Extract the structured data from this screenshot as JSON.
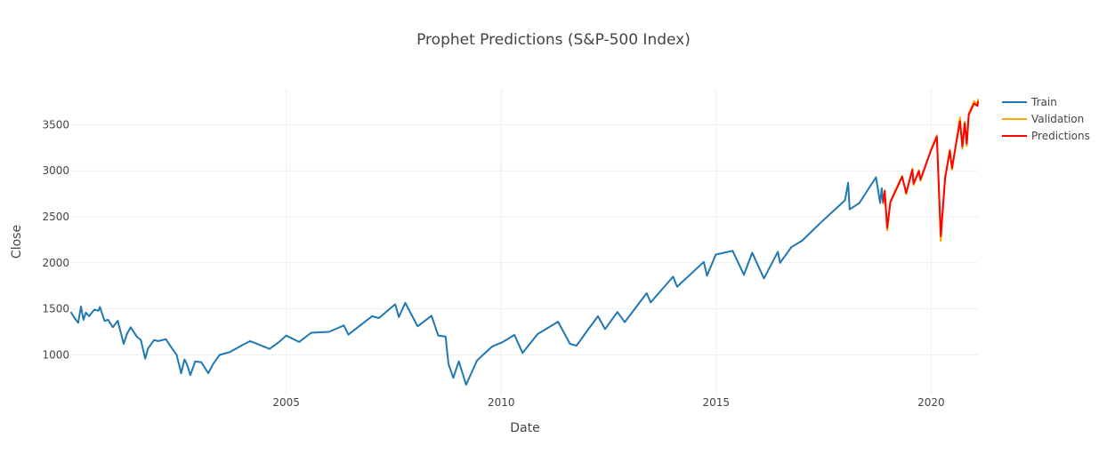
{
  "chart_data": {
    "type": "line",
    "title": "Prophet Predictions (S&P-500 Index)",
    "xlabel": "Date",
    "ylabel": "Close",
    "x_ticks": [
      "2005",
      "2010",
      "2015",
      "2020"
    ],
    "y_ticks": [
      "1000",
      "1500",
      "2000",
      "2500",
      "3000",
      "3500"
    ],
    "xlim": [
      "2000-01-01",
      "2021-02-02"
    ],
    "ylim": [
      560,
      3890
    ],
    "grid": true,
    "legend_position": "top-right",
    "series": [
      {
        "name": "Train",
        "color": "#1f77b4",
        "points": [
          [
            "2000-01-01",
            1460
          ],
          [
            "2000-01-20",
            1420
          ],
          [
            "2000-02-10",
            1380
          ],
          [
            "2000-03-01",
            1350
          ],
          [
            "2000-03-24",
            1525
          ],
          [
            "2000-04-14",
            1380
          ],
          [
            "2000-05-05",
            1460
          ],
          [
            "2000-06-01",
            1420
          ],
          [
            "2000-07-15",
            1490
          ],
          [
            "2000-08-20",
            1480
          ],
          [
            "2000-09-01",
            1520
          ],
          [
            "2000-10-10",
            1370
          ],
          [
            "2000-11-10",
            1380
          ],
          [
            "2000-12-20",
            1300
          ],
          [
            "2001-01-30",
            1370
          ],
          [
            "2001-03-22",
            1120
          ],
          [
            "2001-04-20",
            1230
          ],
          [
            "2001-05-20",
            1300
          ],
          [
            "2001-07-10",
            1200
          ],
          [
            "2001-08-15",
            1160
          ],
          [
            "2001-09-21",
            960
          ],
          [
            "2001-10-15",
            1070
          ],
          [
            "2001-12-05",
            1160
          ],
          [
            "2002-01-10",
            1150
          ],
          [
            "2002-03-15",
            1170
          ],
          [
            "2002-05-01",
            1080
          ],
          [
            "2002-06-15",
            1000
          ],
          [
            "2002-07-23",
            800
          ],
          [
            "2002-08-20",
            950
          ],
          [
            "2002-09-10",
            900
          ],
          [
            "2002-10-09",
            780
          ],
          [
            "2002-11-20",
            930
          ],
          [
            "2003-01-10",
            920
          ],
          [
            "2003-03-11",
            800
          ],
          [
            "2003-04-20",
            900
          ],
          [
            "2003-06-15",
            1000
          ],
          [
            "2003-09-10",
            1030
          ],
          [
            "2003-12-31",
            1110
          ],
          [
            "2004-03-01",
            1150
          ],
          [
            "2004-08-12",
            1065
          ],
          [
            "2004-11-01",
            1140
          ],
          [
            "2004-12-31",
            1210
          ],
          [
            "2005-04-20",
            1140
          ],
          [
            "2005-08-01",
            1240
          ],
          [
            "2005-12-31",
            1250
          ],
          [
            "2006-05-05",
            1320
          ],
          [
            "2006-06-13",
            1220
          ],
          [
            "2006-12-31",
            1420
          ],
          [
            "2007-02-27",
            1400
          ],
          [
            "2007-07-15",
            1550
          ],
          [
            "2007-08-15",
            1410
          ],
          [
            "2007-10-09",
            1565
          ],
          [
            "2008-01-22",
            1310
          ],
          [
            "2008-05-19",
            1425
          ],
          [
            "2008-07-15",
            1210
          ],
          [
            "2008-09-15",
            1200
          ],
          [
            "2008-10-10",
            900
          ],
          [
            "2008-11-20",
            750
          ],
          [
            "2009-01-06",
            930
          ],
          [
            "2009-03-09",
            676
          ],
          [
            "2009-06-10",
            940
          ],
          [
            "2009-10-15",
            1090
          ],
          [
            "2010-01-15",
            1140
          ],
          [
            "2010-04-23",
            1217
          ],
          [
            "2010-07-02",
            1020
          ],
          [
            "2010-11-05",
            1225
          ],
          [
            "2011-04-29",
            1360
          ],
          [
            "2011-08-08",
            1120
          ],
          [
            "2011-10-03",
            1100
          ],
          [
            "2011-12-31",
            1260
          ],
          [
            "2012-04-02",
            1420
          ],
          [
            "2012-06-01",
            1280
          ],
          [
            "2012-09-14",
            1465
          ],
          [
            "2012-11-15",
            1355
          ],
          [
            "2013-05-21",
            1670
          ],
          [
            "2013-06-24",
            1570
          ],
          [
            "2013-12-31",
            1850
          ],
          [
            "2014-02-03",
            1740
          ],
          [
            "2014-09-18",
            2010
          ],
          [
            "2014-10-15",
            1860
          ],
          [
            "2014-12-29",
            2090
          ],
          [
            "2015-05-21",
            2130
          ],
          [
            "2015-08-25",
            1870
          ],
          [
            "2015-11-03",
            2110
          ],
          [
            "2016-02-11",
            1830
          ],
          [
            "2016-06-08",
            2120
          ],
          [
            "2016-06-27",
            2000
          ],
          [
            "2016-10-01",
            2170
          ],
          [
            "2016-12-31",
            2240
          ],
          [
            "2017-06-01",
            2430
          ],
          [
            "2017-12-31",
            2680
          ],
          [
            "2018-01-26",
            2870
          ],
          [
            "2018-02-08",
            2580
          ],
          [
            "2018-05-01",
            2650
          ],
          [
            "2018-09-20",
            2930
          ],
          [
            "2018-10-25",
            2650
          ],
          [
            "2018-11-07",
            2810
          ],
          [
            "2018-11-20",
            2640
          ]
        ]
      },
      {
        "name": "Validation",
        "color": "#ffa500",
        "points": [
          [
            "2018-11-20",
            2640
          ],
          [
            "2018-12-03",
            2790
          ],
          [
            "2018-12-24",
            2351
          ],
          [
            "2019-01-20",
            2670
          ],
          [
            "2019-04-30",
            2945
          ],
          [
            "2019-06-03",
            2745
          ],
          [
            "2019-07-26",
            3025
          ],
          [
            "2019-08-05",
            2845
          ],
          [
            "2019-09-19",
            3005
          ],
          [
            "2019-10-03",
            2890
          ],
          [
            "2019-12-31",
            3230
          ],
          [
            "2020-02-19",
            3386
          ],
          [
            "2020-03-23",
            2237
          ],
          [
            "2020-04-29",
            2940
          ],
          [
            "2020-06-08",
            3232
          ],
          [
            "2020-06-26",
            3010
          ],
          [
            "2020-09-02",
            3580
          ],
          [
            "2020-09-23",
            3237
          ],
          [
            "2020-10-12",
            3535
          ],
          [
            "2020-10-30",
            3270
          ],
          [
            "2020-11-16",
            3625
          ],
          [
            "2020-12-31",
            3756
          ],
          [
            "2021-01-29",
            3714
          ],
          [
            "2021-02-02",
            3773
          ]
        ]
      },
      {
        "name": "Predictions",
        "color": "#ff0000",
        "points": [
          [
            "2018-11-20",
            2660
          ],
          [
            "2018-12-03",
            2780
          ],
          [
            "2018-12-24",
            2380
          ],
          [
            "2019-01-20",
            2660
          ],
          [
            "2019-04-30",
            2935
          ],
          [
            "2019-06-03",
            2760
          ],
          [
            "2019-07-26",
            3010
          ],
          [
            "2019-08-05",
            2860
          ],
          [
            "2019-09-19",
            2995
          ],
          [
            "2019-10-03",
            2905
          ],
          [
            "2019-12-31",
            3220
          ],
          [
            "2020-02-19",
            3370
          ],
          [
            "2020-03-23",
            2290
          ],
          [
            "2020-04-29",
            2920
          ],
          [
            "2020-06-08",
            3215
          ],
          [
            "2020-06-26",
            3030
          ],
          [
            "2020-09-02",
            3540
          ],
          [
            "2020-09-23",
            3265
          ],
          [
            "2020-10-12",
            3515
          ],
          [
            "2020-10-30",
            3295
          ],
          [
            "2020-11-16",
            3610
          ],
          [
            "2020-12-31",
            3730
          ],
          [
            "2021-01-29",
            3705
          ],
          [
            "2021-02-02",
            3750
          ]
        ]
      }
    ]
  }
}
